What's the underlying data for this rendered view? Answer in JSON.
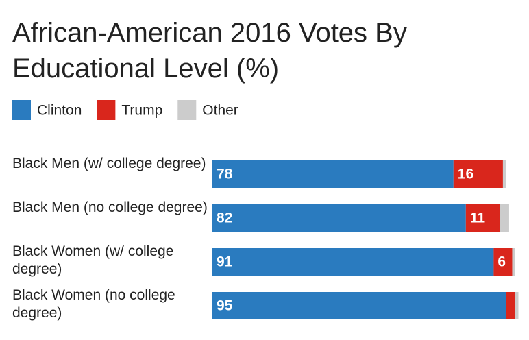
{
  "chart_data": {
    "type": "stacked-bar-horizontal",
    "title": "African-American 2016 Votes By Educational Level (%)",
    "categories": [
      "Black Men (w/ college degree)",
      "Black Men (no college degree)",
      "Black Women (w/ college degree)",
      "Black Women (no college degree)"
    ],
    "series": [
      {
        "name": "Clinton",
        "color": "#2a7bbf",
        "values": [
          78,
          82,
          91,
          95
        ]
      },
      {
        "name": "Trump",
        "color": "#d9261c",
        "values": [
          16,
          11,
          6,
          3
        ]
      },
      {
        "name": "Other",
        "color": "#cccccc",
        "values": [
          1,
          3,
          1,
          1
        ]
      }
    ],
    "xlim": [
      0,
      100
    ]
  }
}
